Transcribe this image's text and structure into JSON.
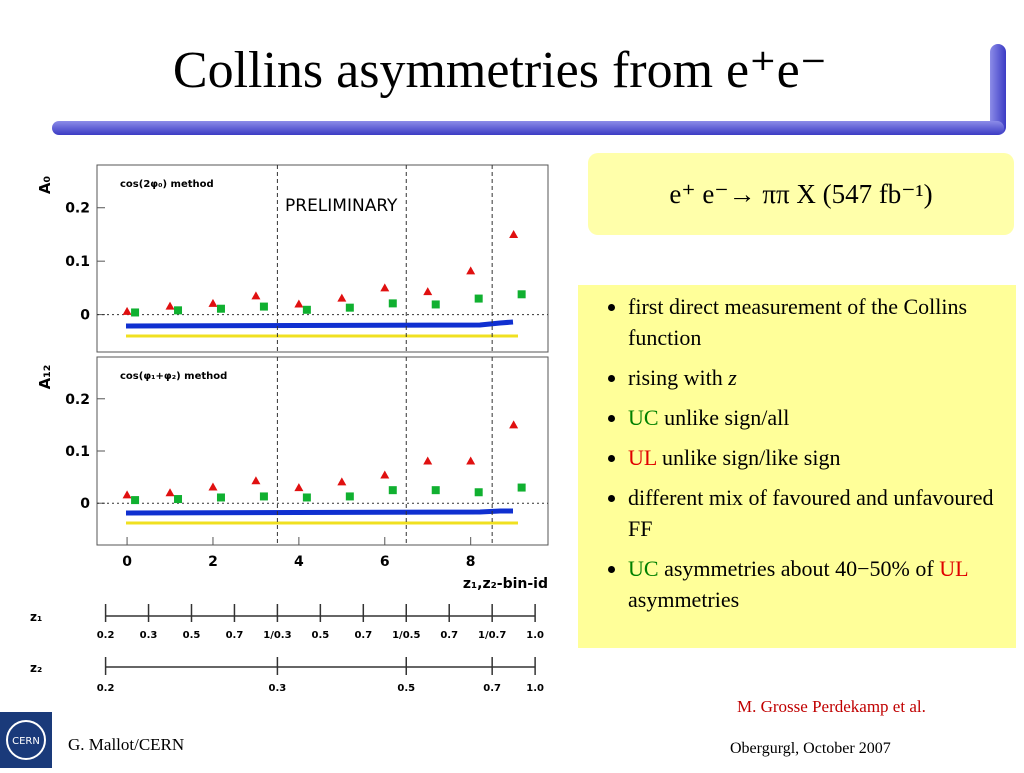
{
  "title": "Collins asymmetries from e⁺e⁻",
  "reaction": "e⁺ e⁻→ ππ X (547 fb⁻¹)",
  "bullets": [
    [
      {
        "text": "first direct measurement of the Collins function"
      }
    ],
    [
      {
        "text": "rising with "
      },
      {
        "text": "z",
        "italic": true
      }
    ],
    [
      {
        "text": "UC",
        "color": "#008000"
      },
      {
        "text": " unlike sign/all"
      }
    ],
    [
      {
        "text": "UL",
        "color": "#e00000"
      },
      {
        "text": " unlike sign/like sign"
      }
    ],
    [
      {
        "text": "different mix of favoured and unfavoured FF"
      }
    ],
    [
      {
        "text": "UC",
        "color": "#008000"
      },
      {
        "text": " asymmetries about 40−50% of "
      },
      {
        "text": "UL",
        "color": "#e00000"
      },
      {
        "text": " asymmetries"
      }
    ]
  ],
  "reference": "M. Grosse Perdekamp et al.",
  "author": "G. Mallot/CERN",
  "place": "Obergurgl, October 2007",
  "logo_text": "CERN",
  "chart_data": [
    {
      "type": "scatter",
      "title": "cos(2φ₀) method",
      "y_label": "A₀",
      "annotation": "PRELIMINARY",
      "x": [
        0,
        1,
        2,
        3,
        4,
        5,
        6,
        7,
        8,
        9
      ],
      "xlim": [
        -0.7,
        9.8
      ],
      "ylim": [
        -0.07,
        0.28
      ],
      "yticks": [
        0,
        0.1,
        0.2
      ],
      "bin_boundaries": [
        3.5,
        6.5,
        8.5
      ],
      "series": [
        {
          "color": "#e01010",
          "marker": "triangle",
          "values": [
            0.005,
            0.015,
            0.02,
            0.034,
            0.019,
            0.03,
            0.049,
            0.042,
            0.081,
            0.149
          ]
        },
        {
          "color": "#10b030",
          "marker": "square",
          "values": [
            0.004,
            0.008,
            0.011,
            0.015,
            0.009,
            0.013,
            0.021,
            0.019,
            0.03,
            0.038
          ]
        }
      ]
    },
    {
      "type": "scatter",
      "title": "cos(φ₁+φ₂) method",
      "y_label": "A₁₂",
      "x_label": "z₁,z₂-bin-id",
      "x": [
        0,
        1,
        2,
        3,
        4,
        5,
        6,
        7,
        8,
        9
      ],
      "xlim": [
        -0.7,
        9.8
      ],
      "ylim": [
        -0.08,
        0.28
      ],
      "yticks": [
        0,
        0.1,
        0.2
      ],
      "xticks": [
        0,
        2,
        4,
        6,
        8
      ],
      "bin_boundaries": [
        3.5,
        6.5,
        8.5
      ],
      "series": [
        {
          "color": "#e01010",
          "marker": "triangle",
          "values": [
            0.015,
            0.019,
            0.03,
            0.042,
            0.029,
            0.04,
            0.053,
            0.08,
            0.08,
            0.149
          ]
        },
        {
          "color": "#10b030",
          "marker": "square",
          "values": [
            0.006,
            0.008,
            0.011,
            0.013,
            0.011,
            0.013,
            0.025,
            0.025,
            0.021,
            0.03
          ]
        }
      ]
    }
  ],
  "z_scales": [
    {
      "label": "z₁",
      "ticks": [
        {
          "value": -0.5,
          "label": "0.2"
        },
        {
          "value": 0.5,
          "label": "0.3"
        },
        {
          "value": 1.5,
          "label": "0.5"
        },
        {
          "value": 2.5,
          "label": "0.7"
        },
        {
          "value": 3.5,
          "label": "1/0.3"
        },
        {
          "value": 4.5,
          "label": "0.5"
        },
        {
          "value": 5.5,
          "label": "0.7"
        },
        {
          "value": 6.5,
          "label": "1/0.5"
        },
        {
          "value": 7.5,
          "label": "0.7"
        },
        {
          "value": 8.5,
          "label": "1/0.7"
        },
        {
          "value": 9.5,
          "label": "1.0"
        }
      ]
    },
    {
      "label": "z₂",
      "ticks": [
        {
          "value": -0.5,
          "label": "0.2"
        },
        {
          "value": 3.5,
          "label": "0.3"
        },
        {
          "value": 6.5,
          "label": "0.5"
        },
        {
          "value": 8.5,
          "label": "0.7"
        },
        {
          "value": 9.5,
          "label": "1.0"
        }
      ]
    }
  ]
}
